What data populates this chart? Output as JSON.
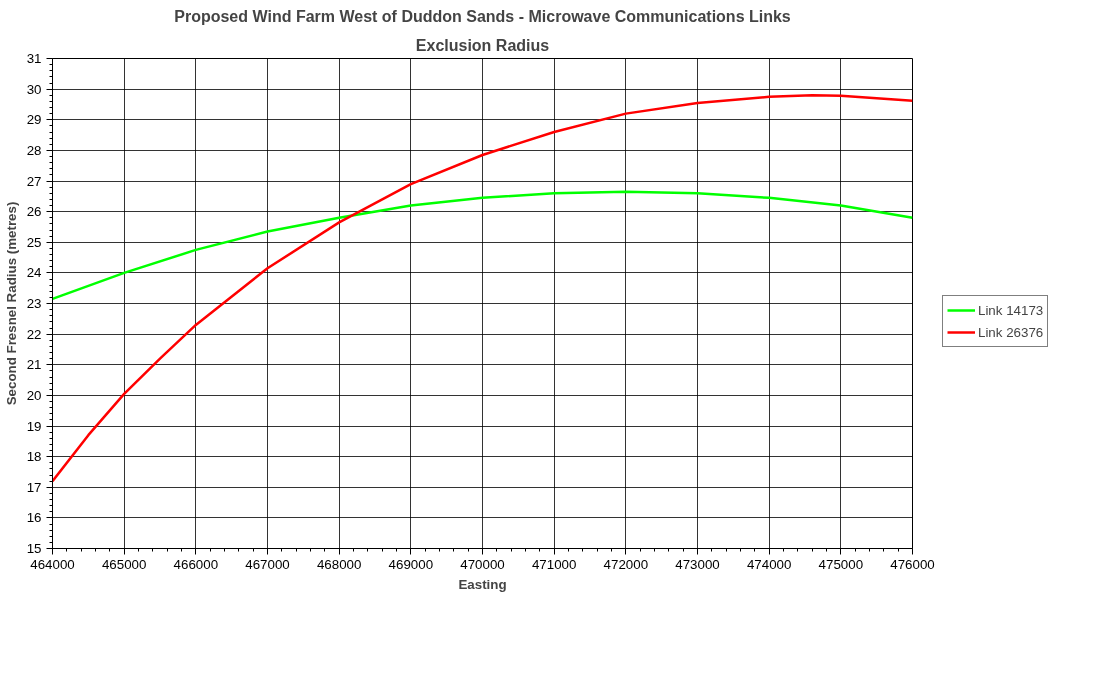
{
  "chart_data": {
    "type": "line",
    "title": "Proposed Wind Farm West of Duddon Sands - Microwave Communications Links",
    "subtitle": "Exclusion Radius",
    "xlabel": "Easting",
    "ylabel": "Second Fresnel Radius (metres)",
    "xlim": [
      464000,
      476000
    ],
    "xticks": [
      464000,
      465000,
      466000,
      467000,
      468000,
      469000,
      470000,
      471000,
      472000,
      473000,
      474000,
      475000,
      476000
    ],
    "ylim": [
      15,
      31
    ],
    "yticks": [
      15,
      16,
      17,
      18,
      19,
      20,
      21,
      22,
      23,
      24,
      25,
      26,
      27,
      28,
      29,
      30,
      31
    ],
    "grid": true,
    "legend": "right",
    "marker": "none",
    "line_style": "solid",
    "series": [
      {
        "name": "Link 14173",
        "color": "#00ff00",
        "x": [
          464000,
          465000,
          466000,
          467000,
          468000,
          469000,
          470000,
          471000,
          472000,
          473000,
          474000,
          475000,
          476000
        ],
        "values": [
          23.15,
          24.0,
          24.75,
          25.35,
          25.8,
          26.2,
          26.45,
          26.6,
          26.65,
          26.6,
          26.45,
          26.2,
          25.8
        ]
      },
      {
        "name": "Link 26376",
        "color": "#ff0000",
        "x": [
          464000,
          464500,
          465000,
          465500,
          466000,
          467000,
          468000,
          469000,
          470000,
          471000,
          472000,
          473000,
          474000,
          474600,
          475000,
          476000
        ],
        "values": [
          17.2,
          18.7,
          20.05,
          21.2,
          22.3,
          24.15,
          25.65,
          26.9,
          27.85,
          28.6,
          29.2,
          29.55,
          29.75,
          29.8,
          29.78,
          29.62
        ]
      }
    ]
  }
}
